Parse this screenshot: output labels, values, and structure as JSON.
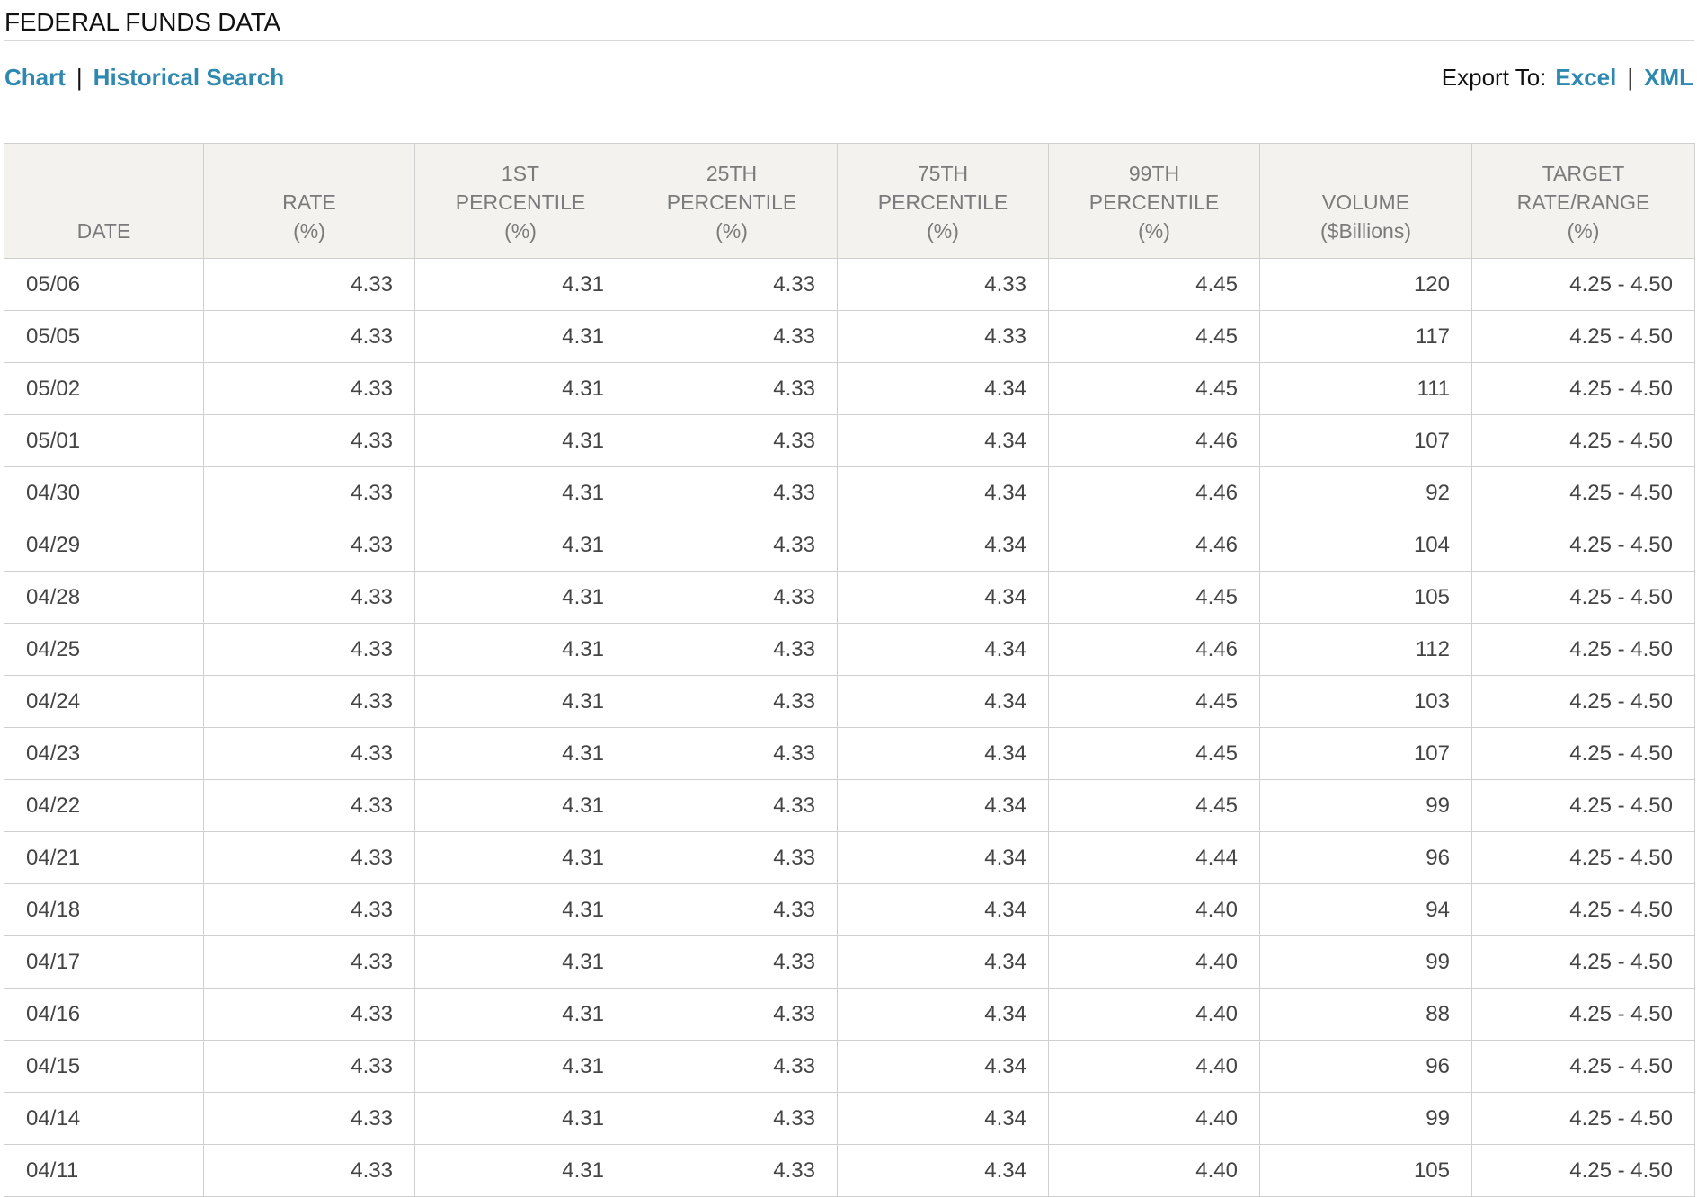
{
  "title": "FEDERAL FUNDS DATA",
  "nav": {
    "chart": "Chart",
    "separator": "|",
    "historical_search": "Historical Search"
  },
  "export": {
    "label": "Export To:",
    "excel": "Excel",
    "separator": "|",
    "xml": "XML"
  },
  "table": {
    "headers": [
      [
        "DATE"
      ],
      [
        "RATE",
        "(%)"
      ],
      [
        "1ST",
        "PERCENTILE",
        "(%)"
      ],
      [
        "25TH",
        "PERCENTILE",
        "(%)"
      ],
      [
        "75TH",
        "PERCENTILE",
        "(%)"
      ],
      [
        "99TH",
        "PERCENTILE",
        "(%)"
      ],
      [
        "VOLUME",
        "($Billions)"
      ],
      [
        "TARGET",
        "RATE/RANGE",
        "(%)"
      ]
    ],
    "rows": [
      [
        "05/06",
        "4.33",
        "4.31",
        "4.33",
        "4.33",
        "4.45",
        "120",
        "4.25 - 4.50"
      ],
      [
        "05/05",
        "4.33",
        "4.31",
        "4.33",
        "4.33",
        "4.45",
        "117",
        "4.25 - 4.50"
      ],
      [
        "05/02",
        "4.33",
        "4.31",
        "4.33",
        "4.34",
        "4.45",
        "111",
        "4.25 - 4.50"
      ],
      [
        "05/01",
        "4.33",
        "4.31",
        "4.33",
        "4.34",
        "4.46",
        "107",
        "4.25 - 4.50"
      ],
      [
        "04/30",
        "4.33",
        "4.31",
        "4.33",
        "4.34",
        "4.46",
        "92",
        "4.25 - 4.50"
      ],
      [
        "04/29",
        "4.33",
        "4.31",
        "4.33",
        "4.34",
        "4.46",
        "104",
        "4.25 - 4.50"
      ],
      [
        "04/28",
        "4.33",
        "4.31",
        "4.33",
        "4.34",
        "4.45",
        "105",
        "4.25 - 4.50"
      ],
      [
        "04/25",
        "4.33",
        "4.31",
        "4.33",
        "4.34",
        "4.46",
        "112",
        "4.25 - 4.50"
      ],
      [
        "04/24",
        "4.33",
        "4.31",
        "4.33",
        "4.34",
        "4.45",
        "103",
        "4.25 - 4.50"
      ],
      [
        "04/23",
        "4.33",
        "4.31",
        "4.33",
        "4.34",
        "4.45",
        "107",
        "4.25 - 4.50"
      ],
      [
        "04/22",
        "4.33",
        "4.31",
        "4.33",
        "4.34",
        "4.45",
        "99",
        "4.25 - 4.50"
      ],
      [
        "04/21",
        "4.33",
        "4.31",
        "4.33",
        "4.34",
        "4.44",
        "96",
        "4.25 - 4.50"
      ],
      [
        "04/18",
        "4.33",
        "4.31",
        "4.33",
        "4.34",
        "4.40",
        "94",
        "4.25 - 4.50"
      ],
      [
        "04/17",
        "4.33",
        "4.31",
        "4.33",
        "4.34",
        "4.40",
        "99",
        "4.25 - 4.50"
      ],
      [
        "04/16",
        "4.33",
        "4.31",
        "4.33",
        "4.34",
        "4.40",
        "88",
        "4.25 - 4.50"
      ],
      [
        "04/15",
        "4.33",
        "4.31",
        "4.33",
        "4.34",
        "4.40",
        "96",
        "4.25 - 4.50"
      ],
      [
        "04/14",
        "4.33",
        "4.31",
        "4.33",
        "4.34",
        "4.40",
        "99",
        "4.25 - 4.50"
      ],
      [
        "04/11",
        "4.33",
        "4.31",
        "4.33",
        "4.34",
        "4.40",
        "105",
        "4.25 - 4.50"
      ]
    ]
  }
}
